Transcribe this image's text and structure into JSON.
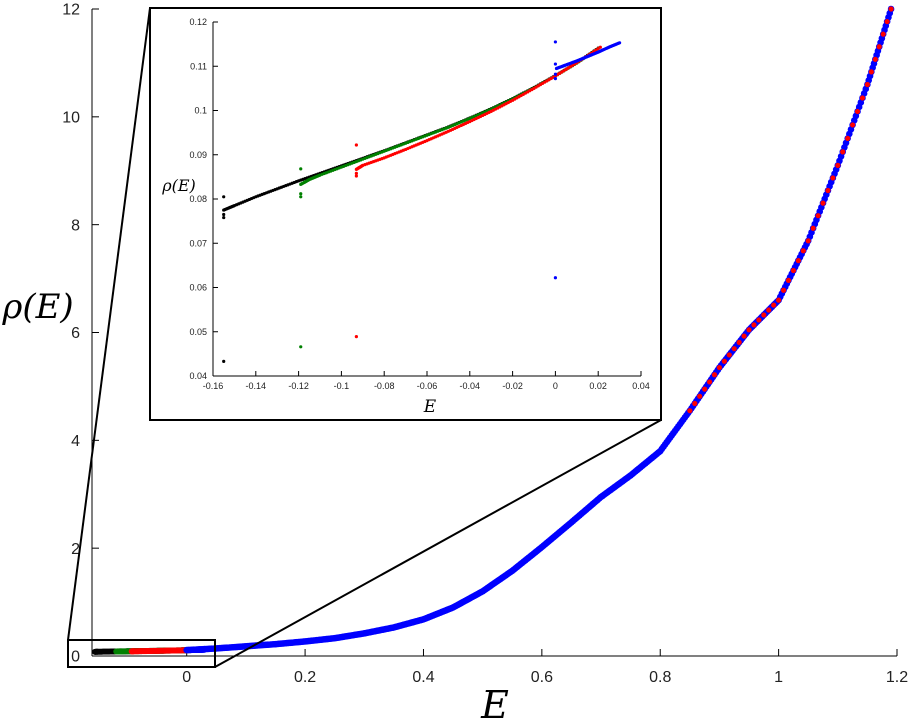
{
  "chart_data": [
    {
      "id": "main",
      "type": "scatter",
      "title": "",
      "xlabel": "E",
      "ylabel": "ρ(E)",
      "xlim": [
        -0.16,
        1.2
      ],
      "ylim": [
        0,
        12
      ],
      "xticks": [
        0,
        0.2,
        0.4,
        0.6,
        0.8,
        1,
        1.2
      ],
      "xtick_labels": [
        "0",
        "0.2",
        "0.4",
        "0.6",
        "0.8",
        "1",
        "1.2"
      ],
      "yticks": [
        0,
        2,
        4,
        6,
        8,
        10,
        12
      ],
      "ytick_labels": [
        "0",
        "2",
        "4",
        "6",
        "8",
        "10",
        "12"
      ],
      "grid": false,
      "series": [
        {
          "color": "#0000ff",
          "x": [
            0,
            0.05,
            0.1,
            0.15,
            0.2,
            0.25,
            0.3,
            0.35,
            0.4,
            0.45,
            0.5,
            0.55,
            0.6,
            0.65,
            0.7,
            0.75,
            0.8,
            0.85,
            0.9,
            0.95,
            1.0,
            1.05,
            1.1,
            1.15,
            1.19
          ],
          "y": [
            0.11,
            0.14,
            0.18,
            0.22,
            0.27,
            0.33,
            0.42,
            0.53,
            0.68,
            0.9,
            1.2,
            1.58,
            2.02,
            2.48,
            2.95,
            3.35,
            3.8,
            4.55,
            5.35,
            6.05,
            6.6,
            7.7,
            9.1,
            10.6,
            12.0
          ]
        },
        {
          "color": "#ff0000",
          "x": [
            0.85,
            0.9,
            0.95,
            1.0,
            1.05,
            1.1,
            1.15,
            1.19
          ],
          "y": [
            4.55,
            5.35,
            6.05,
            6.6,
            7.7,
            9.1,
            10.6,
            12.0
          ]
        }
      ]
    },
    {
      "id": "inset",
      "type": "scatter",
      "title": "",
      "xlabel": "E",
      "ylabel": "ρ(E)",
      "xlim": [
        -0.16,
        0.04
      ],
      "ylim": [
        0.04,
        0.12
      ],
      "xticks": [
        -0.16,
        -0.14,
        -0.12,
        -0.1,
        -0.08,
        -0.06,
        -0.04,
        -0.02,
        0,
        0.02,
        0.04
      ],
      "xtick_labels": [
        "-0.16",
        "-0.14",
        "-0.12",
        "-0.1",
        "-0.08",
        "-0.06",
        "-0.04",
        "-0.02",
        "0",
        "0.02",
        "0.04"
      ],
      "yticks": [
        0.04,
        0.05,
        0.06,
        0.07,
        0.08,
        0.09,
        0.1,
        0.11,
        0.12
      ],
      "ytick_labels": [
        "0.04",
        "0.05",
        "0.06",
        "0.07",
        "0.08",
        "0.09",
        "0.1",
        "0.11",
        "0.12"
      ],
      "grid": false,
      "series": [
        {
          "color": "#000000",
          "x": [
            -0.155,
            -0.15,
            -0.14,
            -0.13,
            -0.12,
            -0.11,
            -0.1,
            -0.09,
            -0.08,
            -0.07,
            -0.06,
            -0.05,
            -0.04,
            -0.03,
            -0.02,
            -0.01,
            0,
            0.01,
            0.02
          ],
          "y": [
            0.0775,
            0.0785,
            0.0805,
            0.0823,
            0.0841,
            0.0858,
            0.0875,
            0.0892,
            0.0909,
            0.0927,
            0.0945,
            0.0963,
            0.0983,
            0.1004,
            0.1027,
            0.1052,
            0.1079,
            0.1108,
            0.1141
          ],
          "outliers_x": [
            -0.155,
            -0.155,
            -0.155,
            -0.155
          ],
          "outliers_y": [
            0.0805,
            0.0765,
            0.0758,
            0.0433
          ]
        },
        {
          "color": "#008000",
          "x": [
            -0.119,
            -0.115,
            -0.11,
            -0.1,
            -0.09,
            -0.08,
            -0.07,
            -0.06,
            -0.05,
            -0.04,
            -0.03,
            -0.02,
            -0.01,
            0,
            0.01,
            0.02
          ],
          "y": [
            0.0833,
            0.0844,
            0.0854,
            0.0872,
            0.089,
            0.0908,
            0.0926,
            0.0944,
            0.0962,
            0.0982,
            0.1003,
            0.1026,
            0.1051,
            0.1078,
            0.1107,
            0.114
          ],
          "outliers_x": [
            -0.119,
            -0.119,
            -0.119,
            -0.119
          ],
          "outliers_y": [
            0.0868,
            0.0812,
            0.0805,
            0.0466
          ]
        },
        {
          "color": "#ff0000",
          "x": [
            -0.093,
            -0.09,
            -0.08,
            -0.07,
            -0.06,
            -0.05,
            -0.04,
            -0.03,
            -0.02,
            -0.01,
            0,
            0.01,
            0.021
          ],
          "y": [
            0.0867,
            0.0876,
            0.0893,
            0.0912,
            0.0932,
            0.0953,
            0.0975,
            0.0998,
            0.1023,
            0.105,
            0.1078,
            0.1108,
            0.1143
          ],
          "outliers_x": [
            -0.093,
            -0.093,
            -0.093,
            -0.093
          ],
          "outliers_y": [
            0.0922,
            0.0858,
            0.0852,
            0.0489
          ]
        },
        {
          "color": "#0000ff",
          "x": [
            0.0005,
            0.005,
            0.01,
            0.015,
            0.02,
            0.025,
            0.03
          ],
          "y": [
            0.1095,
            0.1103,
            0.1112,
            0.1122,
            0.1132,
            0.1143,
            0.1153
          ],
          "outliers_x": [
            0,
            0,
            0,
            0,
            0
          ],
          "outliers_y": [
            0.1155,
            0.1105,
            0.1082,
            0.1072,
            0.0622
          ]
        }
      ]
    }
  ]
}
